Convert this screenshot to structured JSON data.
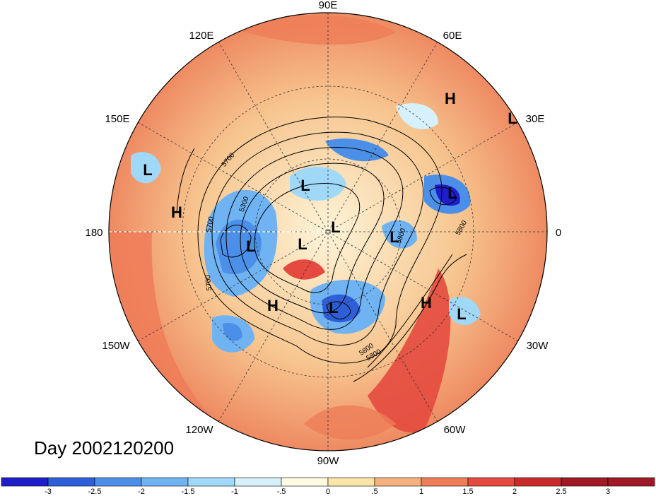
{
  "title": "Day 2002120200",
  "longitude_labels": [
    "90E",
    "60E",
    "30E",
    "0",
    "30W",
    "60W",
    "90W",
    "120W",
    "150W",
    "180",
    "150E",
    "120E"
  ],
  "contour_labels": [
    "5700",
    "5300",
    "5700",
    "5700",
    "5800",
    "5800",
    "5800",
    "5800"
  ],
  "pressure_centers": [
    {
      "label": "L"
    },
    {
      "label": "H"
    },
    {
      "label": "L"
    },
    {
      "label": "L"
    },
    {
      "label": "L"
    },
    {
      "label": "L"
    },
    {
      "label": "L"
    },
    {
      "label": "L"
    },
    {
      "label": "L"
    },
    {
      "label": "H"
    },
    {
      "label": "H"
    },
    {
      "label": "L"
    },
    {
      "label": "H"
    },
    {
      "label": "L"
    }
  ],
  "colorbar": {
    "ticks": [
      "-3",
      "-2.5",
      "-2",
      "-1.5",
      "-1",
      "-.5",
      "0",
      ".5",
      "1",
      "1.5",
      "2",
      "2.5",
      "3"
    ],
    "colors": [
      "#1e1ecb",
      "#2f5fd8",
      "#4c8fe8",
      "#6fb3f3",
      "#a0d8f8",
      "#d6f1fb",
      "#fffbe2",
      "#fbe4a8",
      "#f6b27e",
      "#ee7d58",
      "#e44a3e",
      "#c72b2b",
      "#a01a25"
    ]
  },
  "colors": {
    "background": "#ffffff",
    "warm": "#ee8a62",
    "cold": "#4c8fe8"
  }
}
